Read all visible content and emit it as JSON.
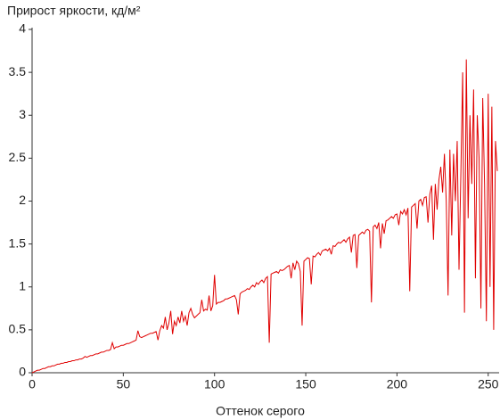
{
  "chart_data": {
    "type": "line",
    "title": "Прирост яркости, кд/м²",
    "x_label": "Оттенок серого",
    "x": [
      0,
      1,
      2,
      3,
      4,
      5,
      6,
      7,
      8,
      9,
      10,
      11,
      12,
      13,
      14,
      15,
      16,
      17,
      18,
      19,
      20,
      21,
      22,
      23,
      24,
      25,
      26,
      27,
      28,
      29,
      30,
      31,
      32,
      33,
      34,
      35,
      36,
      37,
      38,
      39,
      40,
      41,
      42,
      43,
      44,
      45,
      46,
      47,
      48,
      49,
      50,
      51,
      52,
      53,
      54,
      55,
      56,
      57,
      58,
      59,
      60,
      61,
      62,
      63,
      64,
      65,
      66,
      67,
      68,
      69,
      70,
      71,
      72,
      73,
      74,
      75,
      76,
      77,
      78,
      79,
      80,
      81,
      82,
      83,
      84,
      85,
      86,
      87,
      88,
      89,
      90,
      91,
      92,
      93,
      94,
      95,
      96,
      97,
      98,
      99,
      100,
      101,
      102,
      103,
      104,
      105,
      106,
      107,
      108,
      109,
      110,
      111,
      112,
      113,
      114,
      115,
      116,
      117,
      118,
      119,
      120,
      121,
      122,
      123,
      124,
      125,
      126,
      127,
      128,
      129,
      130,
      131,
      132,
      133,
      134,
      135,
      136,
      137,
      138,
      139,
      140,
      141,
      142,
      143,
      144,
      145,
      146,
      147,
      148,
      149,
      150,
      151,
      152,
      153,
      154,
      155,
      156,
      157,
      158,
      159,
      160,
      161,
      162,
      163,
      164,
      165,
      166,
      167,
      168,
      169,
      170,
      171,
      172,
      173,
      174,
      175,
      176,
      177,
      178,
      179,
      180,
      181,
      182,
      183,
      184,
      185,
      186,
      187,
      188,
      189,
      190,
      191,
      192,
      193,
      194,
      195,
      196,
      197,
      198,
      199,
      200,
      201,
      202,
      203,
      204,
      205,
      206,
      207,
      208,
      209,
      210,
      211,
      212,
      213,
      214,
      215,
      216,
      217,
      218,
      219,
      220,
      221,
      222,
      223,
      224,
      225,
      226,
      227,
      228,
      229,
      230,
      231,
      232,
      233,
      234,
      235,
      236,
      237,
      238,
      239,
      240,
      241,
      242,
      243,
      244,
      245,
      246,
      247,
      248,
      249,
      250,
      251,
      252,
      253,
      254,
      255
    ],
    "series": [
      {
        "color": "#e00000",
        "values": [
          0,
          0.01,
          0.02,
          0.03,
          0.03,
          0.04,
          0.05,
          0.05,
          0.06,
          0.07,
          0.07,
          0.08,
          0.08,
          0.09,
          0.1,
          0.1,
          0.11,
          0.11,
          0.12,
          0.12,
          0.13,
          0.13,
          0.14,
          0.14,
          0.15,
          0.15,
          0.16,
          0.16,
          0.17,
          0.19,
          0.18,
          0.19,
          0.2,
          0.2,
          0.21,
          0.22,
          0.22,
          0.23,
          0.24,
          0.24,
          0.25,
          0.26,
          0.26,
          0.27,
          0.35,
          0.28,
          0.3,
          0.3,
          0.31,
          0.32,
          0.32,
          0.33,
          0.34,
          0.34,
          0.35,
          0.36,
          0.37,
          0.38,
          0.49,
          0.42,
          0.41,
          0.42,
          0.43,
          0.44,
          0.45,
          0.46,
          0.46,
          0.47,
          0.48,
          0.38,
          0.49,
          0.55,
          0.52,
          0.65,
          0.5,
          0.58,
          0.72,
          0.45,
          0.6,
          0.55,
          0.65,
          0.58,
          0.72,
          0.6,
          0.66,
          0.55,
          0.7,
          0.75,
          0.68,
          0.64,
          0.66,
          0.68,
          0.7,
          0.85,
          0.72,
          0.74,
          0.73,
          0.9,
          0.72,
          0.78,
          1.14,
          0.8,
          0.82,
          0.82,
          0.83,
          0.84,
          0.86,
          0.86,
          0.87,
          0.88,
          0.89,
          0.9,
          0.85,
          0.68,
          0.92,
          0.94,
          0.95,
          0.96,
          0.98,
          0.97,
          1.0,
          1.02,
          1.0,
          1.05,
          1.03,
          1.06,
          1.08,
          1.05,
          1.1,
          1.12,
          0.35,
          1.15,
          1.16,
          1.17,
          1.18,
          1.16,
          1.2,
          1.19,
          1.2,
          1.22,
          1.24,
          1.25,
          1.1,
          1.28,
          1.2,
          1.3,
          1.27,
          1.18,
          0.55,
          1.3,
          1.32,
          1.34,
          1.33,
          1.03,
          1.36,
          1.35,
          1.38,
          1.4,
          1.37,
          1.42,
          1.43,
          1.44,
          1.42,
          1.45,
          1.38,
          1.48,
          1.47,
          1.5,
          1.52,
          1.51,
          1.53,
          1.55,
          1.52,
          1.56,
          1.58,
          1.4,
          1.6,
          1.61,
          1.22,
          1.6,
          1.62,
          1.64,
          1.62,
          1.66,
          1.67,
          1.65,
          0.82,
          1.7,
          1.72,
          1.68,
          1.75,
          1.45,
          1.74,
          1.62,
          1.77,
          1.78,
          1.8,
          1.82,
          1.8,
          1.84,
          1.85,
          1.72,
          1.88,
          1.85,
          1.9,
          1.84,
          1.92,
          0.95,
          1.93,
          1.95,
          1.97,
          1.68,
          2.0,
          2.02,
          1.95,
          2.04,
          2.05,
          1.75,
          2.08,
          2.18,
          1.55,
          2.2,
          1.9,
          2.25,
          2.4,
          2.1,
          2.55,
          2.0,
          0.9,
          2.6,
          1.6,
          2.55,
          2.0,
          2.7,
          1.2,
          2.3,
          3.5,
          0.7,
          3.65,
          1.8,
          3.0,
          2.2,
          3.3,
          1.1,
          3.0,
          2.5,
          0.75,
          3.2,
          2.2,
          0.6,
          3.25,
          1.0,
          3.1,
          0.5,
          2.7,
          2.35
        ]
      }
    ],
    "xlim": [
      0,
      255
    ],
    "xticks": [
      0,
      50,
      100,
      150,
      200,
      250
    ],
    "ylim": [
      0,
      4
    ],
    "yticks": [
      0,
      0.5,
      1,
      1.5,
      2,
      2.5,
      3,
      3.5,
      4
    ]
  }
}
